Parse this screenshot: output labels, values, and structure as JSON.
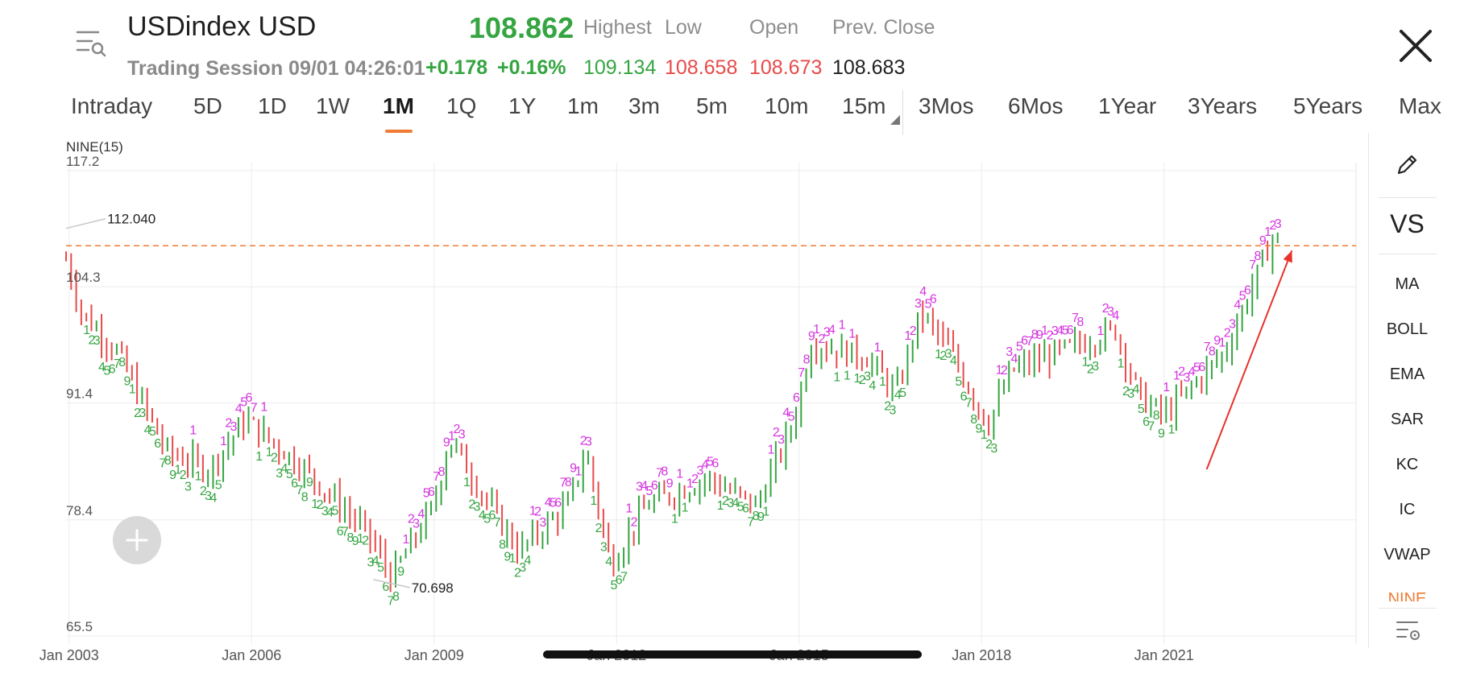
{
  "header": {
    "title": "USDindex USD",
    "price": "108.862",
    "session": "Trading Session 09/01 04:26:01",
    "change": "+0.178",
    "change_pct": "+0.16%",
    "labels": {
      "high": "Highest",
      "low": "Low",
      "open": "Open",
      "prev_close": "Prev. Close"
    },
    "values": {
      "high": "109.134",
      "low": "108.658",
      "open": "108.673",
      "prev_close": "108.683"
    }
  },
  "tabs": [
    {
      "label": "Intraday",
      "active": false
    },
    {
      "label": "5D",
      "active": false
    },
    {
      "label": "1D",
      "active": false
    },
    {
      "label": "1W",
      "active": false
    },
    {
      "label": "1M",
      "active": true
    },
    {
      "label": "1Q",
      "active": false
    },
    {
      "label": "1Y",
      "active": false
    },
    {
      "label": "1m",
      "active": false
    },
    {
      "label": "3m",
      "active": false
    },
    {
      "label": "5m",
      "active": false
    },
    {
      "label": "10m",
      "active": false
    },
    {
      "label": "15m",
      "active": false
    },
    {
      "label": "3Mos",
      "active": false
    },
    {
      "label": "6Mos",
      "active": false
    },
    {
      "label": "1Year",
      "active": false
    },
    {
      "label": "3Years",
      "active": false
    },
    {
      "label": "5Years",
      "active": false
    },
    {
      "label": "Max",
      "active": false
    }
  ],
  "indicator_name": "NINE(15)",
  "side_panel": {
    "vs_label": "VS",
    "items": [
      "MA",
      "BOLL",
      "EMA",
      "SAR",
      "KC",
      "IC",
      "VWAP",
      "NINE"
    ]
  },
  "colors": {
    "up": "#35a541",
    "down": "#e84a4a",
    "accent": "#f07b32",
    "nine": "#d534e0",
    "arrow": "#e8322a"
  },
  "chart_data": {
    "type": "bar",
    "y_ticks": [
      "117.2",
      "104.3",
      "91.4",
      "78.4",
      "65.5"
    ],
    "ylim": [
      65.5,
      117.2
    ],
    "x_ticks": [
      "Jan 2003",
      "Jan 2006",
      "Jan 2009",
      "Jan 2012",
      "Jan 2015",
      "Jan 2018",
      "Jan 2021"
    ],
    "max_label": "112.040",
    "min_label": "70.698",
    "current_level": 108.862,
    "guide_points": [
      [
        2002.9,
        108.5
      ],
      [
        2003.2,
        101.5
      ],
      [
        2003.8,
        97
      ],
      [
        2004.6,
        86
      ],
      [
        2005.3,
        84
      ],
      [
        2005.9,
        89.5
      ],
      [
        2006.8,
        84.5
      ],
      [
        2007.9,
        77
      ],
      [
        2008.3,
        72
      ],
      [
        2009.0,
        80
      ],
      [
        2009.25,
        87.5
      ],
      [
        2010.0,
        79
      ],
      [
        2010.4,
        75
      ],
      [
        2011.2,
        80
      ],
      [
        2011.5,
        86
      ],
      [
        2011.9,
        73.5
      ],
      [
        2012.5,
        80
      ],
      [
        2013.5,
        83
      ],
      [
        2014.3,
        80
      ],
      [
        2014.9,
        89
      ],
      [
        2015.2,
        98
      ],
      [
        2016.1,
        96.5
      ],
      [
        2016.6,
        92.5
      ],
      [
        2017.0,
        101.5
      ],
      [
        2017.5,
        97
      ],
      [
        2018.1,
        89
      ],
      [
        2018.5,
        95
      ],
      [
        2020.2,
        99.5
      ],
      [
        2020.6,
        92
      ],
      [
        2021.0,
        90
      ],
      [
        2022.0,
        97
      ],
      [
        2022.8,
        110
      ],
      [
        2022.95,
        109
      ]
    ]
  }
}
